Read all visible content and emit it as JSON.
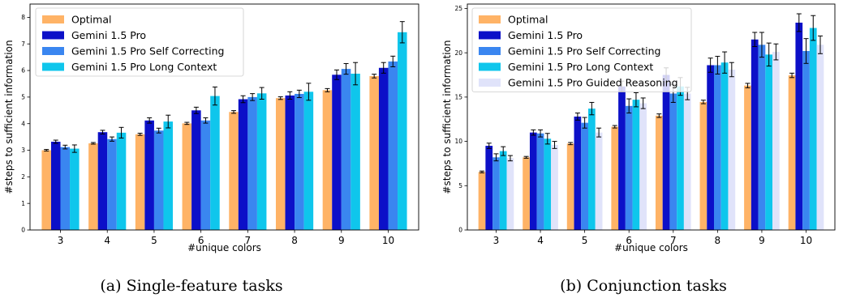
{
  "chart_data": [
    {
      "type": "bar",
      "caption": "(a) Single-feature tasks",
      "xlabel": "#unique colors",
      "ylabel": "#steps to sufficient information",
      "categories": [
        "3",
        "4",
        "5",
        "6",
        "7",
        "8",
        "9",
        "10"
      ],
      "ylim": [
        0,
        8.5
      ],
      "yticks": [
        0,
        1,
        2,
        3,
        4,
        5,
        6,
        7,
        8
      ],
      "legend_position": "top-left",
      "series": [
        {
          "name": "Optimal",
          "color": "#ffb366",
          "values": [
            3.0,
            3.26,
            3.6,
            4.01,
            4.44,
            4.96,
            5.26,
            5.79
          ],
          "errors": [
            0.03,
            0.03,
            0.04,
            0.04,
            0.05,
            0.05,
            0.06,
            0.07
          ]
        },
        {
          "name": "Gemini 1.5 Pro",
          "color": "#0c10c8",
          "values": [
            3.32,
            3.68,
            4.12,
            4.5,
            4.92,
            5.06,
            5.84,
            6.1
          ],
          "errors": [
            0.06,
            0.07,
            0.1,
            0.12,
            0.13,
            0.14,
            0.18,
            0.2
          ]
        },
        {
          "name": "Gemini 1.5 Pro Self Correcting",
          "color": "#3a86f0",
          "values": [
            3.12,
            3.42,
            3.74,
            4.12,
            5.0,
            5.12,
            6.06,
            6.34
          ],
          "errors": [
            0.07,
            0.08,
            0.09,
            0.1,
            0.13,
            0.14,
            0.2,
            0.2
          ]
        },
        {
          "name": "Gemini 1.5 Pro Long Context",
          "color": "#0fc6ec",
          "values": [
            3.06,
            3.66,
            4.08,
            5.04,
            5.14,
            5.2,
            5.88,
            7.44
          ],
          "errors": [
            0.14,
            0.2,
            0.24,
            0.34,
            0.22,
            0.32,
            0.42,
            0.4
          ]
        }
      ]
    },
    {
      "type": "bar",
      "caption": "(b) Conjunction tasks",
      "xlabel": "#unique colors",
      "ylabel": "#steps to sufficient information",
      "categories": [
        "3",
        "4",
        "5",
        "6",
        "7",
        "8",
        "9",
        "10"
      ],
      "ylim": [
        0,
        25.5
      ],
      "yticks": [
        0,
        5,
        10,
        15,
        20,
        25
      ],
      "legend_position": "top-left",
      "series": [
        {
          "name": "Optimal",
          "color": "#ffb366",
          "values": [
            6.55,
            8.2,
            9.75,
            11.65,
            12.9,
            14.45,
            16.3,
            17.45
          ],
          "errors": [
            0.1,
            0.1,
            0.12,
            0.14,
            0.2,
            0.2,
            0.25,
            0.25
          ]
        },
        {
          "name": "Gemini 1.5 Pro",
          "color": "#0c10c8",
          "values": [
            9.5,
            11.0,
            12.8,
            16.2,
            17.5,
            18.6,
            21.5,
            23.4
          ],
          "errors": [
            0.3,
            0.3,
            0.4,
            0.6,
            0.8,
            0.8,
            0.8,
            1.0
          ]
        },
        {
          "name": "Gemini 1.5 Pro Self Correcting",
          "color": "#3a86f0",
          "values": [
            8.2,
            10.9,
            12.1,
            14.0,
            15.4,
            18.6,
            20.9,
            20.2
          ],
          "errors": [
            0.4,
            0.4,
            0.6,
            0.8,
            1.0,
            1.0,
            1.4,
            1.4
          ]
        },
        {
          "name": "Gemini 1.5 Pro Long Context",
          "color": "#0fc6ec",
          "values": [
            8.9,
            10.3,
            13.7,
            14.7,
            16.2,
            18.9,
            19.8,
            22.8
          ],
          "errors": [
            0.5,
            0.6,
            0.7,
            0.8,
            1.0,
            1.2,
            1.3,
            1.4
          ]
        },
        {
          "name": "Gemini 1.5 Pro Guided Reasoning",
          "color": "#e0e3fa",
          "values": [
            8.1,
            9.6,
            11.0,
            14.3,
            15.4,
            18.1,
            20.1,
            20.9
          ],
          "errors": [
            0.3,
            0.4,
            0.5,
            0.6,
            0.7,
            0.8,
            0.9,
            1.0
          ]
        }
      ]
    }
  ]
}
